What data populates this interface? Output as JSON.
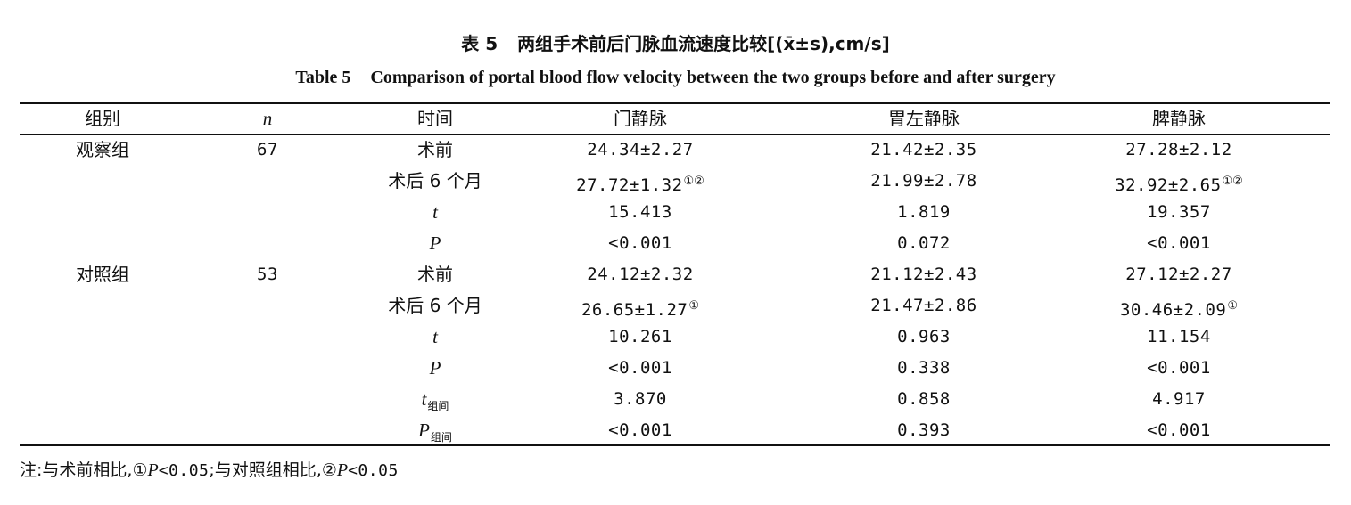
{
  "caption": {
    "cn_number": "表 5",
    "cn_title": "两组手术前后门脉血流速度比较[(x̄±s),cm/s]",
    "en_number": "Table 5",
    "en_title": "Comparison of portal blood flow velocity between the two groups before and after surgery"
  },
  "table": {
    "headers": {
      "group": "组别",
      "n": "n",
      "time": "时间",
      "portal": "门静脉",
      "gastric": "胃左静脉",
      "splenic": "脾静脉"
    },
    "groups": {
      "obs": {
        "name": "观察组",
        "n": "67"
      },
      "ctl": {
        "name": "对照组",
        "n": "53"
      }
    },
    "rows": [
      {
        "time": "术前",
        "portal": "24.34±2.27",
        "portal_mark": "",
        "gastric": "21.42±2.35",
        "splenic": "27.28±2.12",
        "splenic_mark": ""
      },
      {
        "time": "术后 6 个月",
        "portal": "27.72±1.32",
        "portal_mark": "①②",
        "gastric": "21.99±2.78",
        "splenic": "32.92±2.65",
        "splenic_mark": "①②"
      },
      {
        "time": "t",
        "portal": "15.413",
        "gastric": "1.819",
        "splenic": "19.357"
      },
      {
        "time": "P",
        "portal": "<0.001",
        "gastric": "0.072",
        "splenic": "<0.001"
      },
      {
        "time": "术前",
        "portal": "24.12±2.32",
        "portal_mark": "",
        "gastric": "21.12±2.43",
        "splenic": "27.12±2.27",
        "splenic_mark": ""
      },
      {
        "time": "术后 6 个月",
        "portal": "26.65±1.27",
        "portal_mark": "①",
        "gastric": "21.47±2.86",
        "splenic": "30.46±2.09",
        "splenic_mark": "①"
      },
      {
        "time": "t",
        "portal": "10.261",
        "gastric": "0.963",
        "splenic": "11.154"
      },
      {
        "time": "P",
        "portal": "<0.001",
        "gastric": "0.338",
        "splenic": "<0.001"
      },
      {
        "time": "t",
        "time_sub": "组间",
        "portal": "3.870",
        "gastric": "0.858",
        "splenic": "4.917"
      },
      {
        "time": "P",
        "time_sub": "组间",
        "portal": "<0.001",
        "gastric": "0.393",
        "splenic": "<0.001"
      }
    ]
  },
  "note": {
    "prefix": "注:与术前相比,①",
    "p1": "P",
    "val1": "<0.05",
    "mid": ";与对照组相比,②",
    "p2": "P",
    "val2": "<0.05"
  }
}
